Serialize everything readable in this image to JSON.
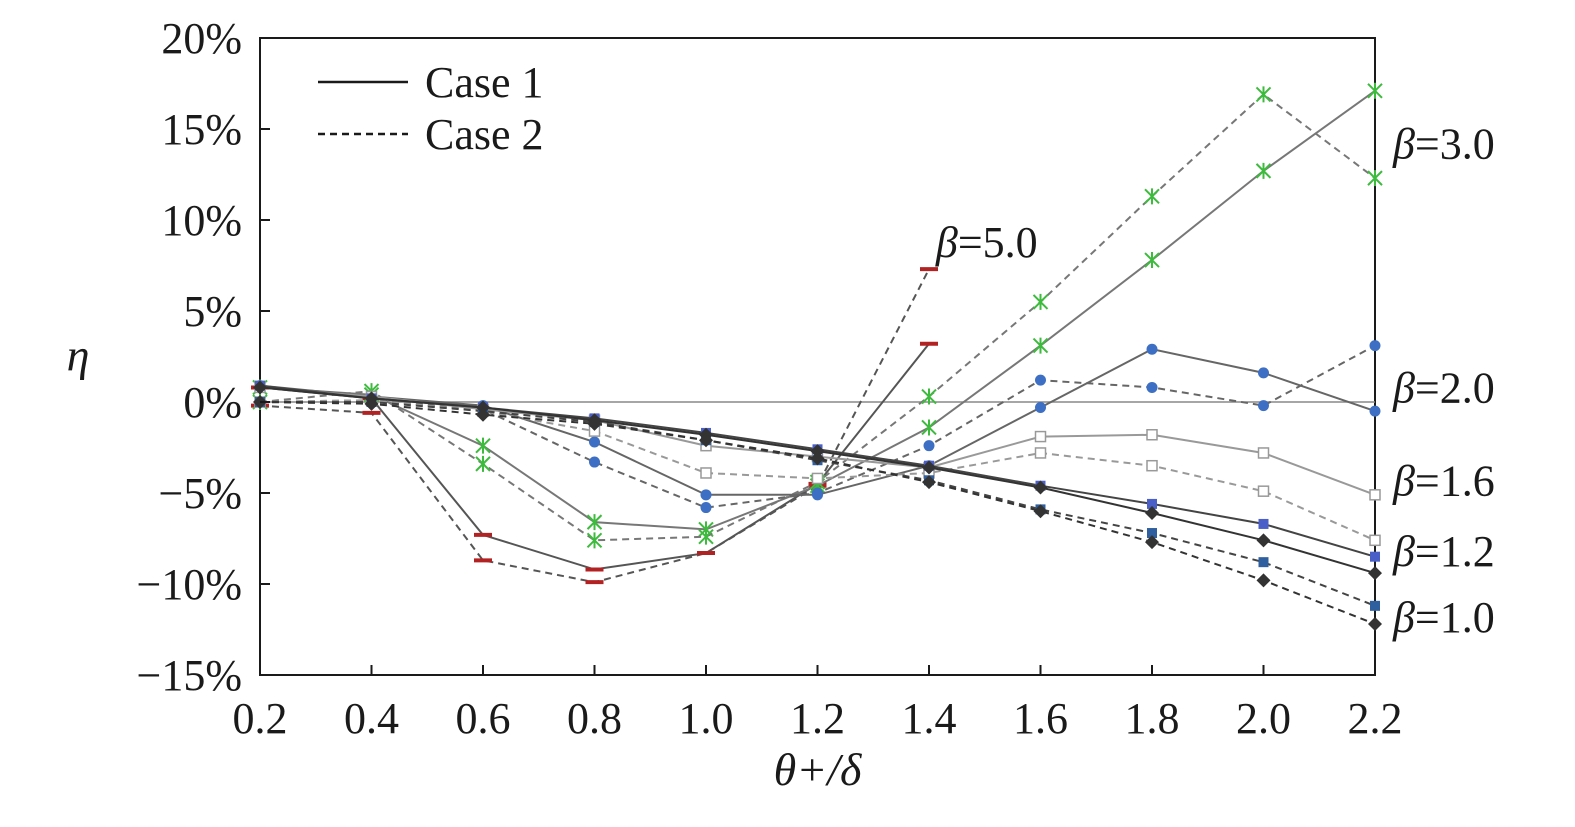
{
  "chart_data": {
    "type": "line",
    "xlabel": "θ+/δ",
    "ylabel": "η",
    "xlim": [
      0.2,
      2.2
    ],
    "ylim": [
      -15,
      20
    ],
    "x_ticks": [
      "0.2",
      "0.4",
      "0.6",
      "0.8",
      "1.0",
      "1.2",
      "1.4",
      "1.6",
      "1.8",
      "2.0",
      "2.2"
    ],
    "y_ticks": [
      {
        "value": 20,
        "label": "20%"
      },
      {
        "value": 15,
        "label": "15%"
      },
      {
        "value": 10,
        "label": "10%"
      },
      {
        "value": 5,
        "label": "5%"
      },
      {
        "value": 0,
        "label": "0%"
      },
      {
        "value": -5,
        "label": "−5%"
      },
      {
        "value": -10,
        "label": "−10%"
      },
      {
        "value": -15,
        "label": "−15%"
      }
    ],
    "legend": {
      "position": "top-left",
      "entries": [
        {
          "label": "Case 1",
          "style": "solid"
        },
        {
          "label": "Case 2",
          "style": "dashed"
        }
      ]
    },
    "reference_line_y": 0,
    "annotations": [
      {
        "text": "β=3.0",
        "y": 14.2
      },
      {
        "text": "β=2.0",
        "y": 0.8
      },
      {
        "text": "β=1.6",
        "y": -4.3
      },
      {
        "text": "β=1.2",
        "y": -8.2
      },
      {
        "text": "β=1.0",
        "y": -11.8
      },
      {
        "text": "β=5.0",
        "x": 1.52,
        "y": 8.8
      }
    ],
    "series": [
      {
        "beta": "5.0",
        "case": "Case 1",
        "style": "solid",
        "color": "#555555",
        "marker": "dash",
        "marker_color": "#b22222",
        "x": [
          0.2,
          0.4,
          0.6,
          0.8,
          1.0,
          1.2,
          1.4
        ],
        "y": [
          0.8,
          0.2,
          -7.3,
          -9.2,
          -8.3,
          -4.5,
          3.2
        ]
      },
      {
        "beta": "5.0",
        "case": "Case 2",
        "style": "dashed",
        "color": "#555555",
        "marker": "dash",
        "marker_color": "#b22222",
        "x": [
          0.2,
          0.4,
          0.6,
          0.8,
          1.0,
          1.2,
          1.4
        ],
        "y": [
          -0.2,
          -0.6,
          -8.7,
          -9.9,
          -8.3,
          -4.6,
          7.3
        ]
      },
      {
        "beta": "3.0",
        "case": "Case 1",
        "style": "solid",
        "color": "#777777",
        "marker": "star",
        "marker_color": "#3dbb3d",
        "x": [
          0.2,
          0.4,
          0.6,
          0.8,
          1.0,
          1.2,
          1.4,
          1.6,
          1.8,
          2.0,
          2.2
        ],
        "y": [
          0.8,
          0.4,
          -2.4,
          -6.6,
          -7.0,
          -4.6,
          -1.4,
          3.1,
          7.8,
          12.7,
          17.1
        ]
      },
      {
        "beta": "3.0",
        "case": "Case 2",
        "style": "dashed",
        "color": "#777777",
        "marker": "star",
        "marker_color": "#3dbb3d",
        "x": [
          0.2,
          0.4,
          0.6,
          0.8,
          1.0,
          1.2,
          1.4,
          1.6,
          1.8,
          2.0,
          2.2
        ],
        "y": [
          0.0,
          0.6,
          -3.4,
          -7.6,
          -7.4,
          -4.4,
          0.3,
          5.5,
          11.3,
          16.9,
          12.3
        ]
      },
      {
        "beta": "2.0",
        "case": "Case 1",
        "style": "solid",
        "color": "#666666",
        "marker": "circle",
        "marker_color": "#3d6fc4",
        "x": [
          0.2,
          0.4,
          0.6,
          0.8,
          1.0,
          1.2,
          1.4,
          1.6,
          1.8,
          2.0,
          2.2
        ],
        "y": [
          0.9,
          0.3,
          -0.2,
          -2.2,
          -5.1,
          -5.1,
          -3.5,
          -0.3,
          2.9,
          1.6,
          -0.5
        ]
      },
      {
        "beta": "2.0",
        "case": "Case 2",
        "style": "dashed",
        "color": "#666666",
        "marker": "circle",
        "marker_color": "#3d6fc4",
        "x": [
          0.2,
          0.4,
          0.6,
          0.8,
          1.0,
          1.2,
          1.4,
          1.6,
          1.8,
          2.0,
          2.2
        ],
        "y": [
          0.0,
          0.1,
          -0.4,
          -3.3,
          -5.8,
          -5.0,
          -2.4,
          1.2,
          0.8,
          -0.2,
          3.1
        ]
      },
      {
        "beta": "1.6",
        "case": "Case 1",
        "style": "solid",
        "color": "#999999",
        "marker": "square-open",
        "marker_color": "#999999",
        "x": [
          0.2,
          0.4,
          0.6,
          0.8,
          1.0,
          1.2,
          1.4,
          1.6,
          1.8,
          2.0,
          2.2
        ],
        "y": [
          0.8,
          0.3,
          -0.4,
          -1.0,
          -2.4,
          -3.0,
          -3.6,
          -1.9,
          -1.8,
          -2.8,
          -5.1
        ]
      },
      {
        "beta": "1.6",
        "case": "Case 2",
        "style": "dashed",
        "color": "#999999",
        "marker": "square-open",
        "marker_color": "#999999",
        "x": [
          0.2,
          0.4,
          0.6,
          0.8,
          1.0,
          1.2,
          1.4,
          1.6,
          1.8,
          2.0,
          2.2
        ],
        "y": [
          0.0,
          0.1,
          -0.5,
          -1.6,
          -3.9,
          -4.2,
          -3.9,
          -2.8,
          -3.5,
          -4.9,
          -7.6
        ]
      },
      {
        "beta": "1.2",
        "case": "Case 1",
        "style": "solid",
        "color": "#444444",
        "marker": "square",
        "marker_color": "#4a5fc8",
        "x": [
          0.2,
          0.4,
          0.6,
          0.8,
          1.0,
          1.2,
          1.4,
          1.6,
          1.8,
          2.0,
          2.2
        ],
        "y": [
          0.9,
          0.2,
          -0.3,
          -0.9,
          -1.7,
          -2.6,
          -3.5,
          -4.6,
          -5.6,
          -6.7,
          -8.5
        ]
      },
      {
        "beta": "1.2",
        "case": "Case 2",
        "style": "dashed",
        "color": "#444444",
        "marker": "square",
        "marker_color": "#2f5f9f",
        "x": [
          0.2,
          0.4,
          0.6,
          0.8,
          1.0,
          1.2,
          1.4,
          1.6,
          1.8,
          2.0,
          2.2
        ],
        "y": [
          0.0,
          0.0,
          -0.5,
          -1.1,
          -2.1,
          -3.2,
          -4.3,
          -5.9,
          -7.2,
          -8.8,
          -11.2
        ]
      },
      {
        "beta": "1.0",
        "case": "Case 1",
        "style": "solid",
        "color": "#333333",
        "marker": "diamond",
        "marker_color": "#333333",
        "x": [
          0.2,
          0.4,
          0.6,
          0.8,
          1.0,
          1.2,
          1.4,
          1.6,
          1.8,
          2.0,
          2.2
        ],
        "y": [
          0.8,
          0.2,
          -0.3,
          -1.0,
          -1.8,
          -2.7,
          -3.6,
          -4.7,
          -6.1,
          -7.6,
          -9.4
        ]
      },
      {
        "beta": "1.0",
        "case": "Case 2",
        "style": "dashed",
        "color": "#333333",
        "marker": "diamond",
        "marker_color": "#333333",
        "x": [
          0.2,
          0.4,
          0.6,
          0.8,
          1.0,
          1.2,
          1.4,
          1.6,
          1.8,
          2.0,
          2.2
        ],
        "y": [
          0.0,
          -0.1,
          -0.7,
          -1.2,
          -2.1,
          -3.1,
          -4.4,
          -6.0,
          -7.7,
          -9.8,
          -12.2
        ]
      }
    ]
  }
}
